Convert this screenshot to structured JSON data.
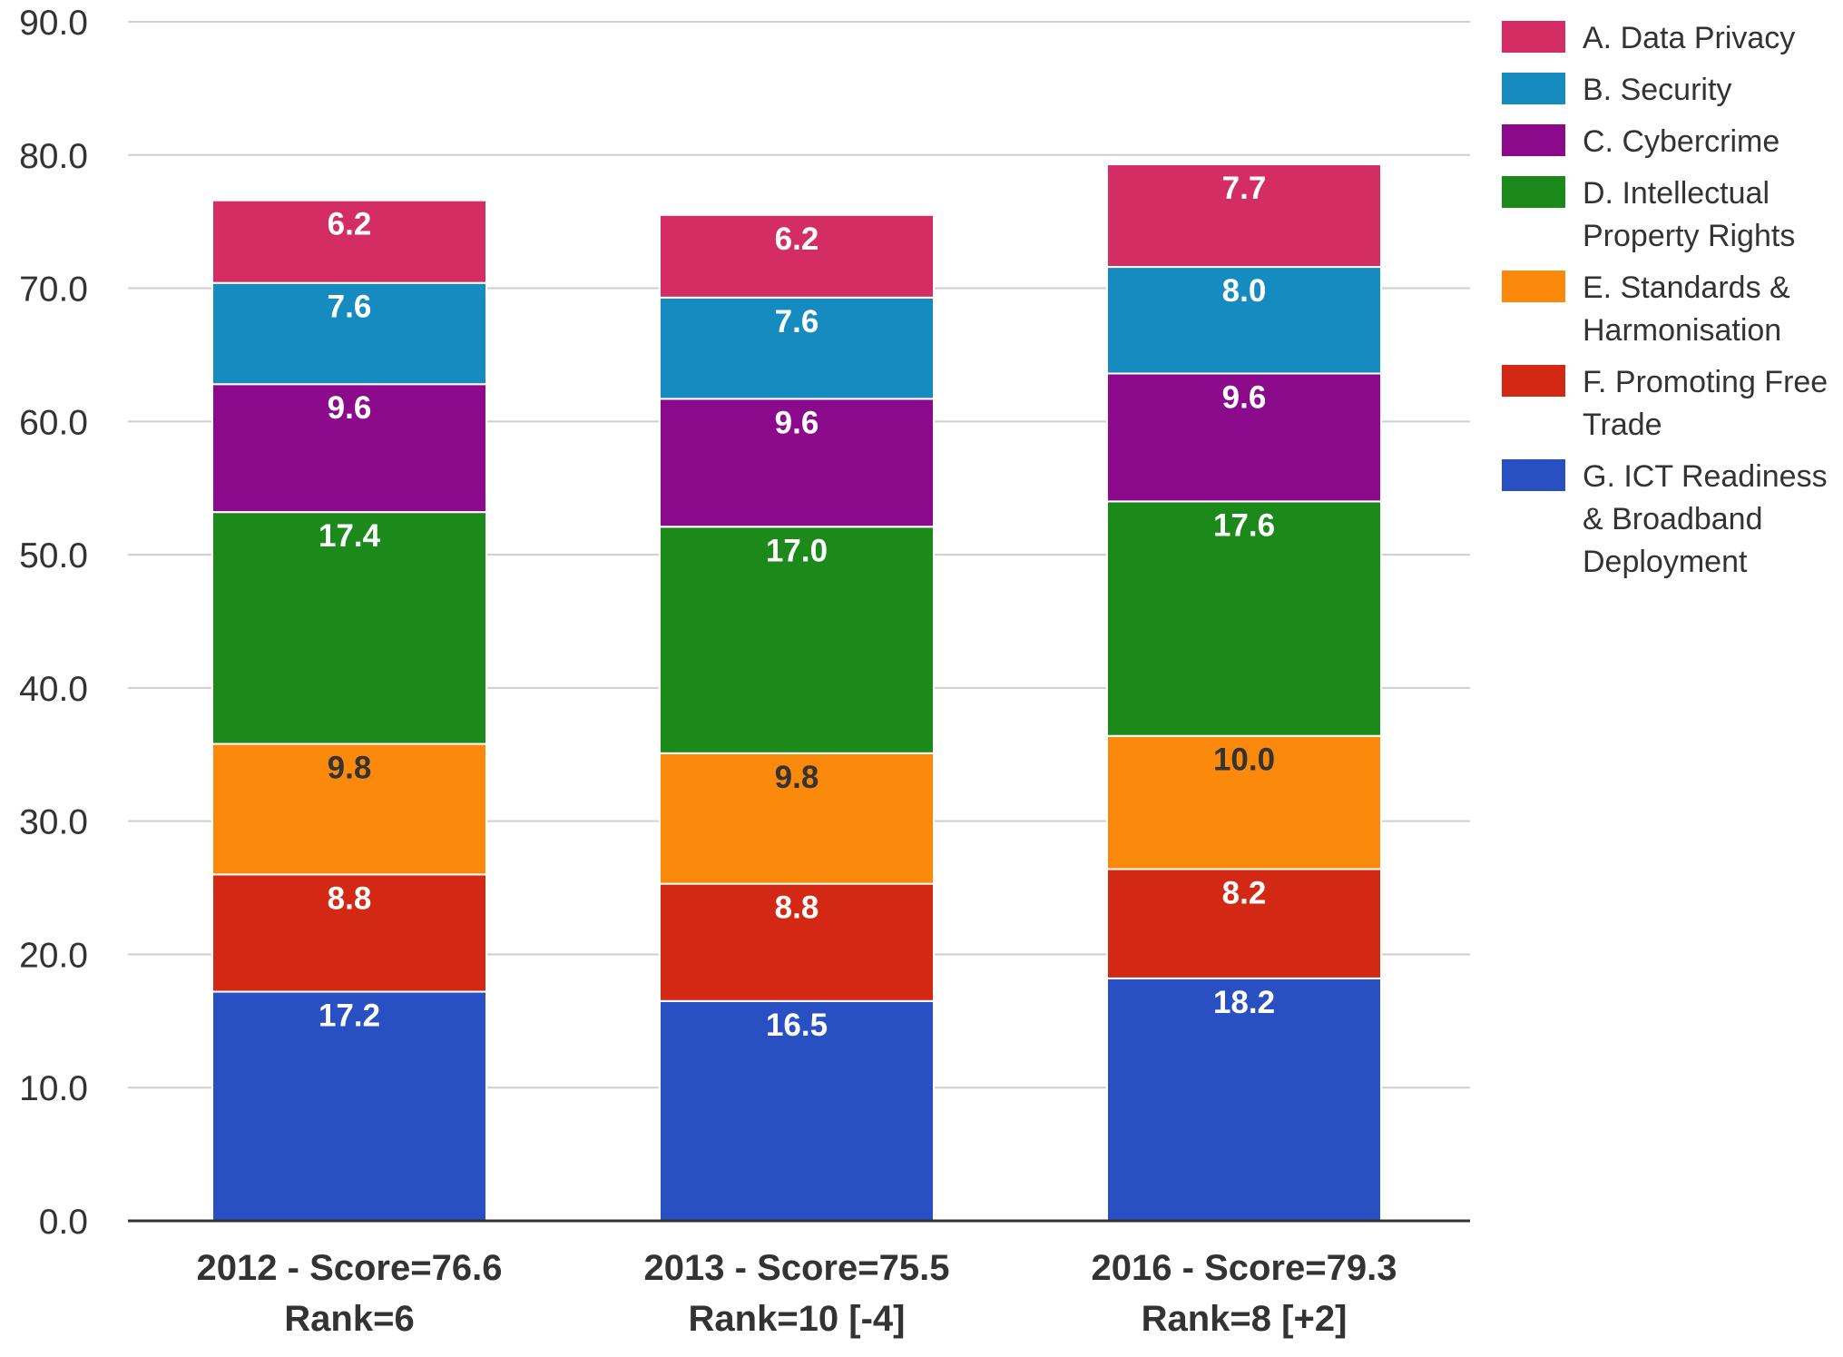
{
  "chart_data": {
    "type": "bar",
    "stacked": true,
    "title": "",
    "xlabel": "",
    "ylabel": "",
    "ylim": [
      0,
      90
    ],
    "yticks": [
      "0.0",
      "10.0",
      "20.0",
      "30.0",
      "40.0",
      "50.0",
      "60.0",
      "70.0",
      "80.0",
      "90.0"
    ],
    "grid": true,
    "legend_position": "right",
    "categories": [
      [
        "2012 - Score=76.6",
        "Rank=6"
      ],
      [
        "2013 - Score=75.5",
        "Rank=10 [-4]"
      ],
      [
        "2016 - Score=79.3",
        "Rank=8 [+2]"
      ]
    ],
    "series": [
      {
        "name": "G. ICT Readiness & Broadband Deployment",
        "legend_lines": [
          "G. ICT Readiness",
          "& Broadband",
          "Deployment"
        ],
        "color": "#2850c2",
        "label_color": "#ffffff",
        "values": [
          17.2,
          16.5,
          18.2
        ],
        "labels": [
          "17.2",
          "16.5",
          "18.2"
        ]
      },
      {
        "name": "F. Promoting Free Trade",
        "legend_lines": [
          "F. Promoting Free",
          "Trade"
        ],
        "color": "#d22814",
        "label_color": "#ffffff",
        "values": [
          8.8,
          8.8,
          8.2
        ],
        "labels": [
          "8.8",
          "8.8",
          "8.2"
        ]
      },
      {
        "name": "E. Standards & Harmonisation",
        "legend_lines": [
          "E. Standards &",
          "Harmonisation"
        ],
        "color": "#fb890c",
        "label_color": "#333333",
        "values": [
          9.8,
          9.8,
          10.0
        ],
        "labels": [
          "9.8",
          "9.8",
          "10.0"
        ]
      },
      {
        "name": "D. Intellectual Property Rights",
        "legend_lines": [
          "D. Intellectual",
          "Property Rights"
        ],
        "color": "#1b8a1b",
        "label_color": "#ffffff",
        "values": [
          17.4,
          17.0,
          17.6
        ],
        "labels": [
          "17.4",
          "17.0",
          "17.6"
        ]
      },
      {
        "name": "C. Cybercrime",
        "legend_lines": [
          "C. Cybercrime"
        ],
        "color": "#8b0a8c",
        "label_color": "#ffffff",
        "values": [
          9.6,
          9.6,
          9.6
        ],
        "labels": [
          "9.6",
          "9.6",
          "9.6"
        ]
      },
      {
        "name": "B. Security",
        "legend_lines": [
          "B. Security"
        ],
        "color": "#158bbf",
        "label_color": "#ffffff",
        "values": [
          7.6,
          7.6,
          8.0
        ],
        "labels": [
          "7.6",
          "7.6",
          "8.0"
        ]
      },
      {
        "name": "A. Data Privacy",
        "legend_lines": [
          "A. Data Privacy"
        ],
        "color": "#d42d64",
        "label_color": "#ffffff",
        "values": [
          6.2,
          6.2,
          7.7
        ],
        "labels": [
          "6.2",
          "6.2",
          "7.7"
        ]
      }
    ]
  }
}
